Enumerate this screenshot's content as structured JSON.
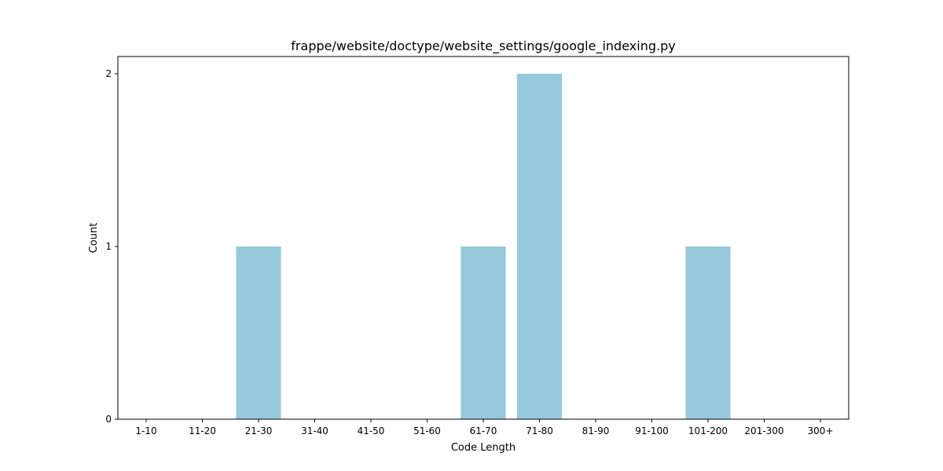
{
  "chart_data": {
    "type": "bar",
    "title": "frappe/website/doctype/website_settings/google_indexing.py",
    "xlabel": "Code Length",
    "ylabel": "Count",
    "categories": [
      "1-10",
      "11-20",
      "21-30",
      "31-40",
      "41-50",
      "51-60",
      "61-70",
      "71-80",
      "81-90",
      "91-100",
      "101-200",
      "201-300",
      "300+"
    ],
    "values": [
      0,
      0,
      1,
      0,
      0,
      0,
      1,
      2,
      0,
      0,
      1,
      0,
      0
    ],
    "ylim": [
      0,
      2.1
    ],
    "yticks": [
      0,
      1,
      2
    ],
    "bar_color": "#96c9dc",
    "grid": false,
    "legend": "none"
  }
}
